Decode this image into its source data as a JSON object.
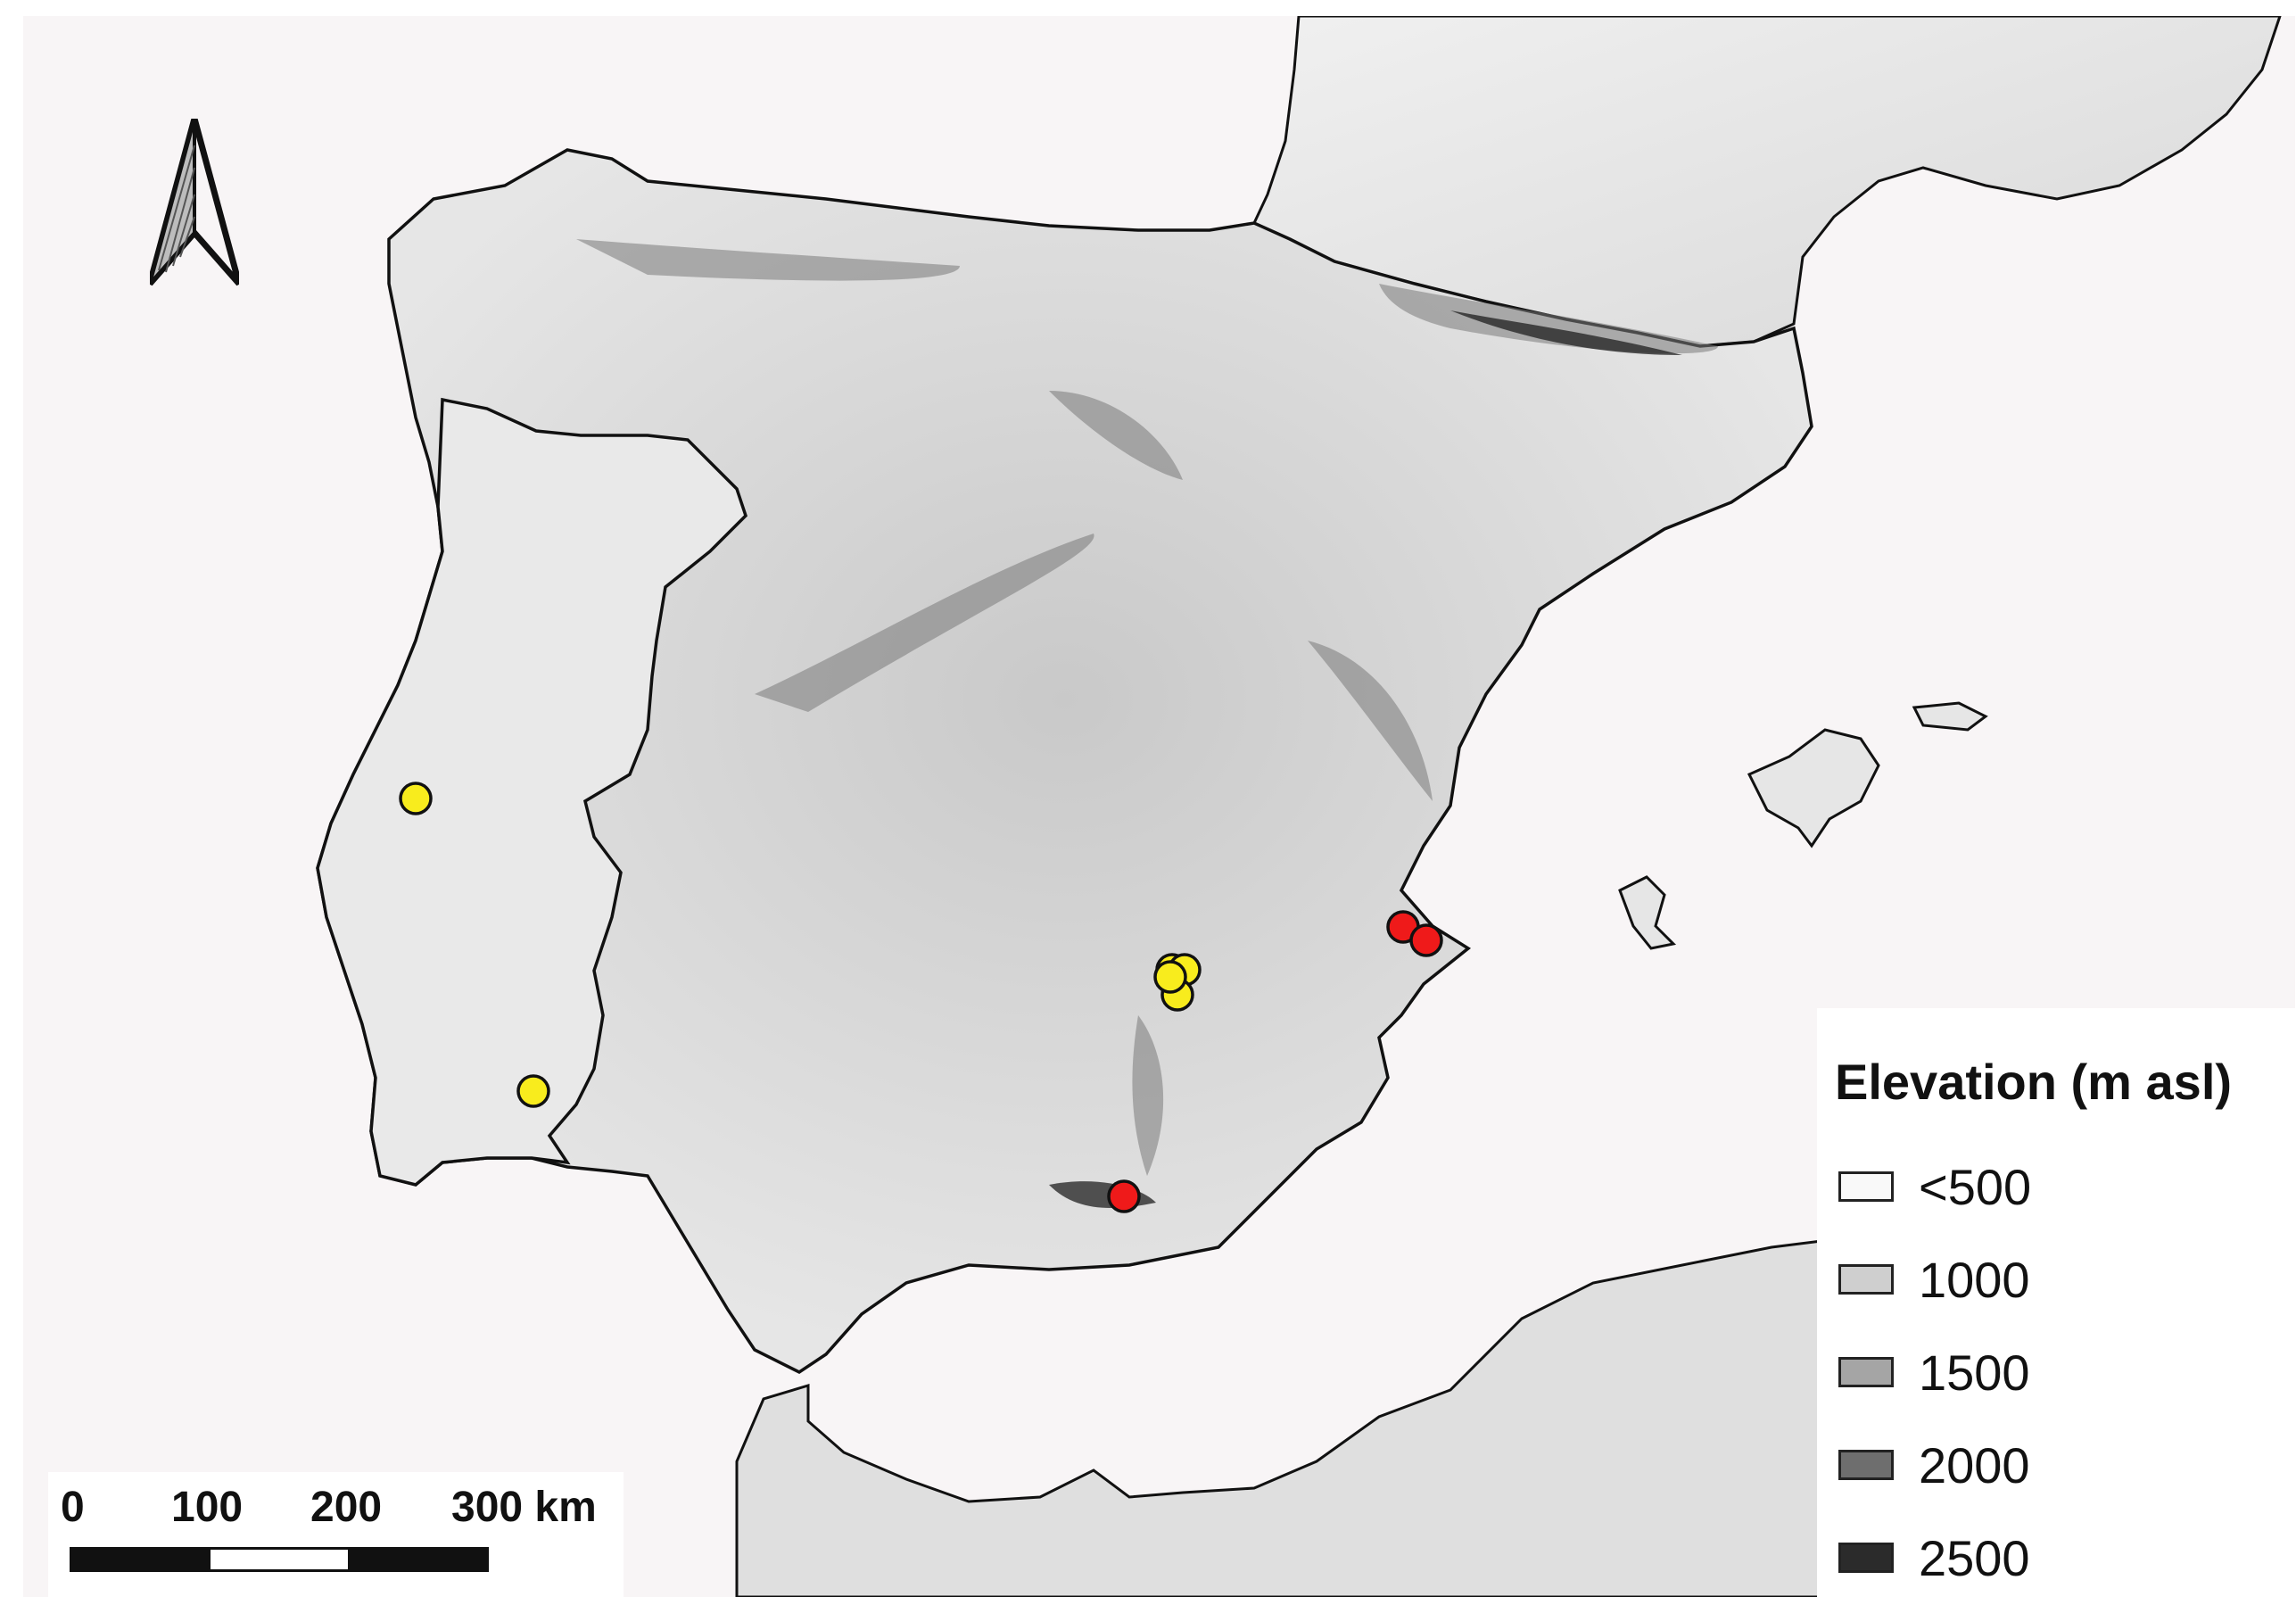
{
  "map": {
    "background_color": "#f8f5f6",
    "land_color": "#dcdcdc",
    "border_color": "#111111"
  },
  "north_arrow": {
    "icon": "north-arrow-icon"
  },
  "scale_bar": {
    "labels": [
      "0",
      "100",
      "200",
      "300 km"
    ],
    "segment_colors": [
      "#111111",
      "#ffffff",
      "#111111"
    ]
  },
  "legend": {
    "title": "Elevation (m asl)",
    "items": [
      {
        "label": "<500",
        "color": "#f9f9f9"
      },
      {
        "label": "1000",
        "color": "#cfcfcf"
      },
      {
        "label": "1500",
        "color": "#a5a5a5"
      },
      {
        "label": "2000",
        "color": "#6e6e6e"
      },
      {
        "label": "2500",
        "color": "#2b2b2b"
      }
    ]
  },
  "sites": {
    "yellow_color": "#f8ec1d",
    "red_color": "#ef1a1a",
    "yellow_count": 6,
    "red_count": 3
  }
}
